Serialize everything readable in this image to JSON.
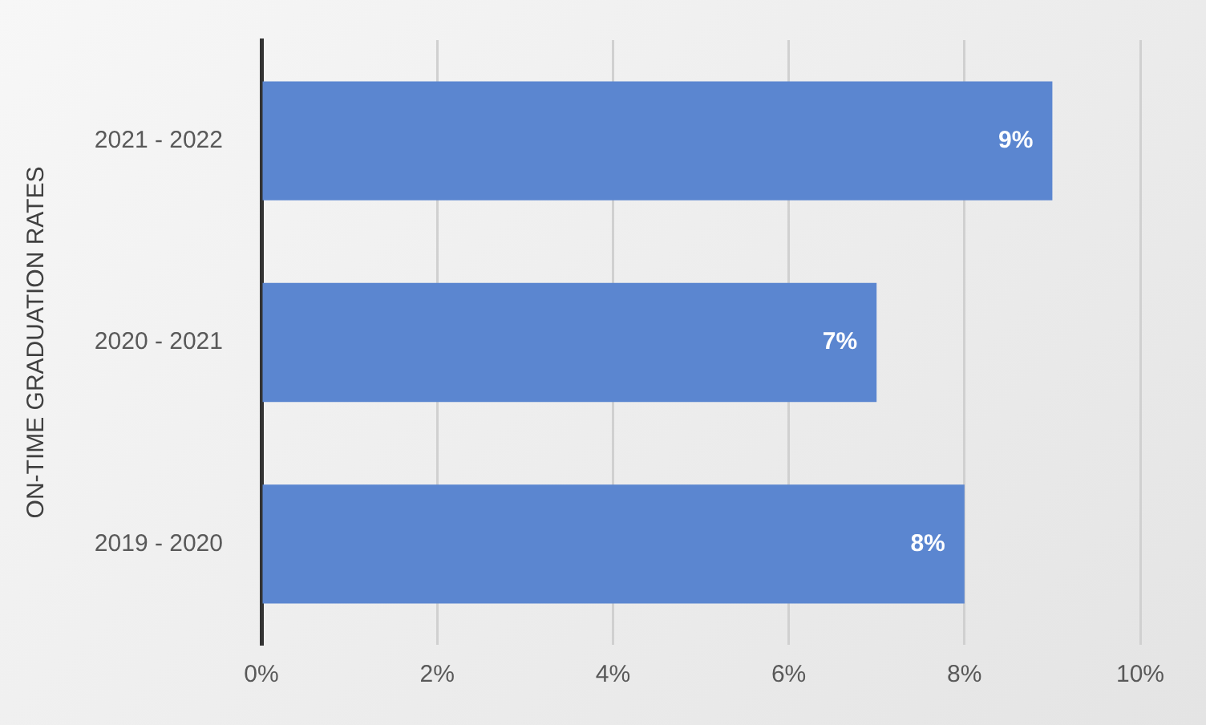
{
  "chart_data": {
    "type": "bar",
    "orientation": "horizontal",
    "ylabel": "ON-TIME GRADUATION RATES",
    "categories": [
      "2021 - 2022",
      "2020 - 2021",
      "2019 - 2020"
    ],
    "values": [
      9,
      7,
      8
    ],
    "color": "#5b86d0",
    "value_labels": [
      "9%",
      "7%",
      "8%"
    ],
    "xlim": [
      0,
      10
    ],
    "xticks": [
      {
        "value": 0,
        "label": "0%"
      },
      {
        "value": 2,
        "label": "2%"
      },
      {
        "value": 4,
        "label": "4%"
      },
      {
        "value": 6,
        "label": "6%"
      },
      {
        "value": 8,
        "label": "8%"
      },
      {
        "value": 10,
        "label": "10%"
      }
    ],
    "grid": "x",
    "legend": false
  }
}
